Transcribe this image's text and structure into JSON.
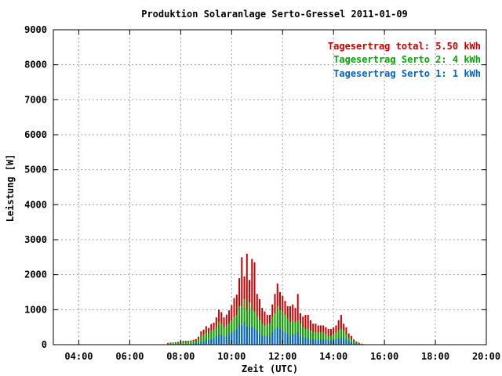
{
  "chart_data": {
    "type": "bar",
    "title": "Produktion Solaranlage Serto-Gressel 2011-01-09",
    "xlabel": "Zeit (UTC)",
    "ylabel": "Leistung [W]",
    "xlim": [
      3.0,
      20.0
    ],
    "ylim": [
      0,
      9000
    ],
    "grid": true,
    "legend_position": "top-right",
    "x_tick_values": [
      4,
      6,
      8,
      10,
      12,
      14,
      16,
      18,
      20
    ],
    "x_tick_labels": [
      "04:00",
      "06:00",
      "08:00",
      "10:00",
      "12:00",
      "14:00",
      "16:00",
      "18:00",
      "20:00"
    ],
    "y_tick_values": [
      0,
      1000,
      2000,
      3000,
      4000,
      5000,
      6000,
      7000,
      8000,
      9000
    ],
    "y_tick_labels": [
      "0",
      "1000",
      "2000",
      "3000",
      "4000",
      "5000",
      "6000",
      "7000",
      "8000",
      "9000"
    ],
    "legend": [
      {
        "label": "Tagesertrag total: 5.50 kWh",
        "color": "#cc0000"
      },
      {
        "label": "Tagesertrag Serto 2: 4 kWh",
        "color": "#00aa00"
      },
      {
        "label": "Tagesertrag Serto 1: 1 kWh",
        "color": "#0066cc"
      }
    ],
    "series_colors": {
      "serto1": "#0066cc",
      "serto2": "#00aa00",
      "total": "#cc0000"
    },
    "x": [
      7.5,
      7.6,
      7.7,
      7.8,
      7.9,
      8.0,
      8.1,
      8.2,
      8.3,
      8.4,
      8.5,
      8.6,
      8.7,
      8.8,
      8.9,
      9.0,
      9.1,
      9.2,
      9.3,
      9.4,
      9.5,
      9.6,
      9.7,
      9.8,
      9.9,
      10.0,
      10.1,
      10.2,
      10.3,
      10.4,
      10.5,
      10.6,
      10.7,
      10.8,
      10.9,
      11.0,
      11.1,
      11.2,
      11.3,
      11.4,
      11.5,
      11.6,
      11.7,
      11.8,
      11.9,
      12.0,
      12.1,
      12.2,
      12.3,
      12.4,
      12.5,
      12.6,
      12.7,
      12.8,
      12.9,
      13.0,
      13.1,
      13.2,
      13.3,
      13.4,
      13.5,
      13.6,
      13.7,
      13.8,
      13.9,
      14.0,
      14.1,
      14.2,
      14.3,
      14.4,
      14.5,
      14.6,
      14.7,
      14.8,
      14.9,
      15.0,
      15.1,
      15.2
    ],
    "series": [
      {
        "name": "Serto 1",
        "values": [
          10,
          10,
          10,
          10,
          15,
          15,
          20,
          20,
          20,
          25,
          30,
          35,
          50,
          80,
          100,
          150,
          130,
          160,
          180,
          250,
          300,
          280,
          220,
          250,
          300,
          350,
          400,
          450,
          600,
          550,
          650,
          500,
          550,
          500,
          450,
          400,
          300,
          250,
          250,
          250,
          250,
          350,
          450,
          500,
          450,
          400,
          350,
          300,
          250,
          300,
          300,
          350,
          250,
          200,
          200,
          200,
          150,
          150,
          150,
          150,
          150,
          150,
          150,
          120,
          120,
          150,
          150,
          180,
          200,
          180,
          150,
          100,
          80,
          50,
          30,
          20,
          10,
          5
        ]
      },
      {
        "name": "Serto 2",
        "values": [
          30,
          40,
          40,
          50,
          60,
          70,
          80,
          80,
          80,
          90,
          100,
          110,
          150,
          250,
          300,
          350,
          320,
          400,
          420,
          500,
          650,
          600,
          500,
          550,
          600,
          700,
          800,
          850,
          1100,
          1100,
          1300,
          1000,
          1200,
          1000,
          950,
          800,
          700,
          600,
          550,
          600,
          600,
          800,
          900,
          1100,
          1000,
          950,
          850,
          750,
          650,
          700,
          650,
          700,
          600,
          500,
          450,
          450,
          400,
          350,
          350,
          350,
          350,
          350,
          300,
          250,
          250,
          300,
          350,
          400,
          450,
          400,
          300,
          200,
          150,
          100,
          60,
          40,
          20,
          10
        ]
      },
      {
        "name": "Total",
        "values": [
          50,
          60,
          60,
          70,
          80,
          100,
          110,
          110,
          110,
          120,
          140,
          160,
          230,
          380,
          430,
          530,
          480,
          590,
          630,
          780,
          1000,
          930,
          780,
          860,
          980,
          1130,
          1330,
          1430,
          1900,
          2500,
          1950,
          2600,
          1850,
          2450,
          2350,
          1450,
          1300,
          1050,
          950,
          850,
          850,
          1150,
          1450,
          1750,
          1500,
          1400,
          1250,
          1100,
          1100,
          1150,
          1050,
          1450,
          900,
          800,
          850,
          850,
          700,
          600,
          600,
          550,
          550,
          550,
          500,
          450,
          450,
          500,
          550,
          700,
          850,
          600,
          500,
          320,
          250,
          150,
          90,
          60,
          30,
          15
        ]
      }
    ]
  }
}
